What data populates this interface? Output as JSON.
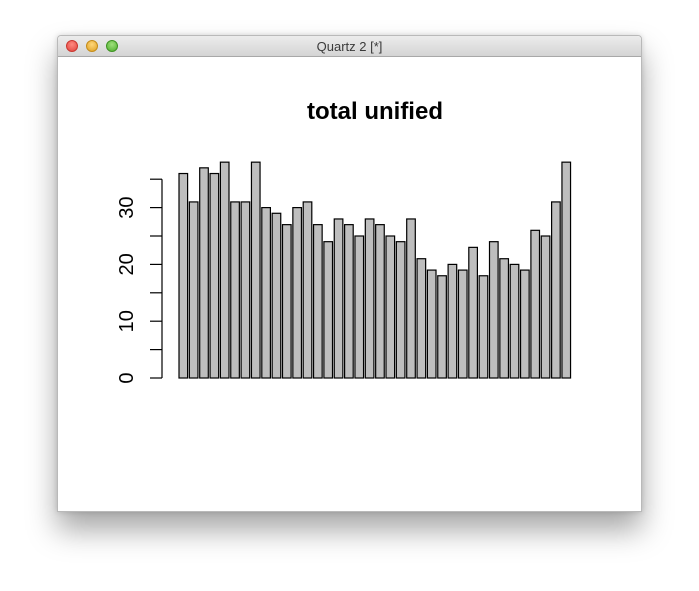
{
  "window": {
    "title": "Quartz 2 [*]"
  },
  "chart_data": {
    "type": "bar",
    "title": "total unified",
    "xlabel": "",
    "ylabel": "",
    "ylim": [
      0,
      38
    ],
    "yticks": [
      0,
      10,
      20,
      30
    ],
    "grid": false,
    "bar_color": "#bebebe",
    "bar_border_color": "#000000",
    "values": [
      36,
      31,
      37,
      36,
      38,
      31,
      31,
      38,
      30,
      29,
      27,
      30,
      31,
      27,
      24,
      28,
      27,
      25,
      28,
      27,
      25,
      24,
      28,
      21,
      19,
      18,
      20,
      19,
      23,
      18,
      24,
      21,
      20,
      19,
      26,
      25,
      31,
      38
    ]
  }
}
